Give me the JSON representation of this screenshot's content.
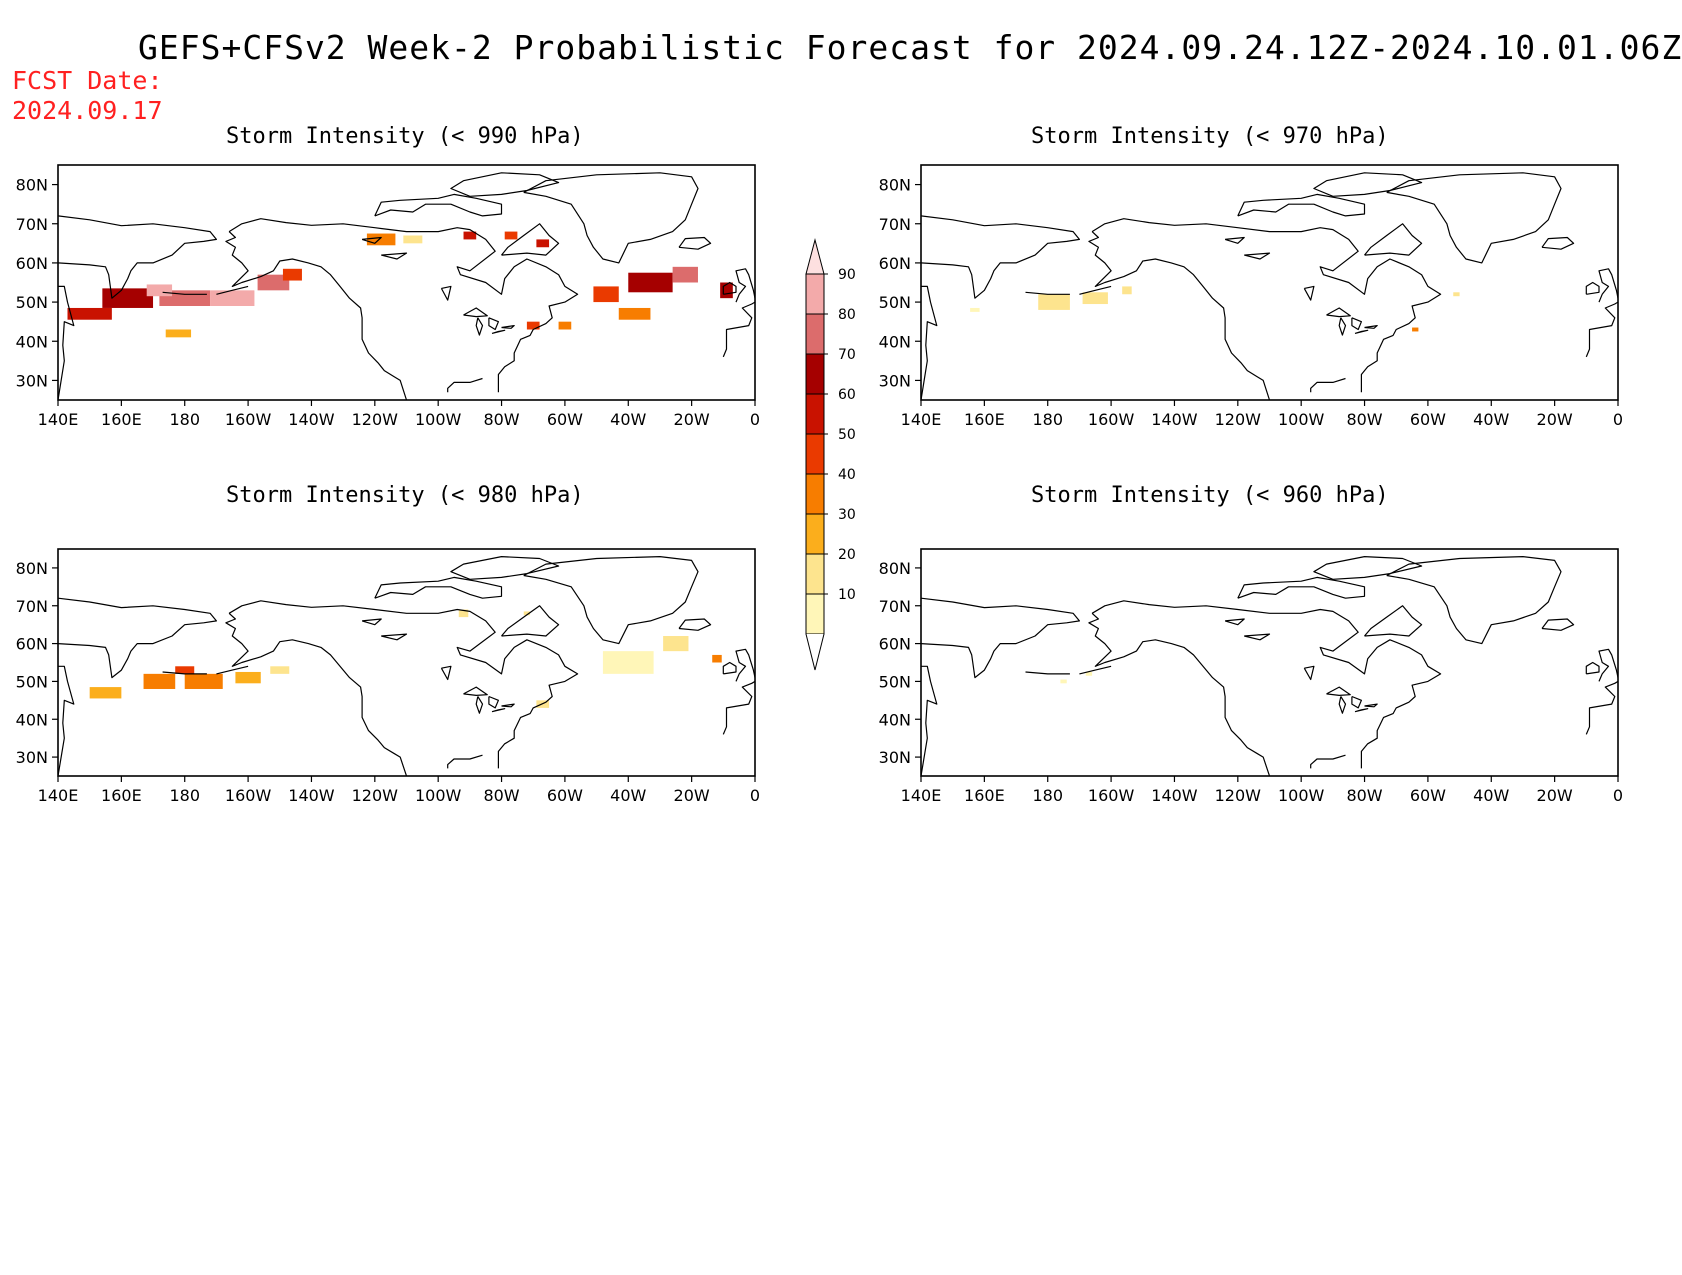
{
  "title": "GEFS+CFSv2 Week-2 Probabilistic Forecast for 2024.09.24.12Z-2024.10.01.06Z",
  "fcst_label": "FCST Date:",
  "fcst_date": "2024.09.17",
  "lon_ticks": [
    "140E",
    "160E",
    "180",
    "160W",
    "140W",
    "120W",
    "100W",
    "80W",
    "60W",
    "40W",
    "20W",
    "0"
  ],
  "lat_ticks": [
    "80N",
    "70N",
    "60N",
    "50N",
    "40N",
    "30N"
  ],
  "colorbar": {
    "levels": [
      "10",
      "20",
      "30",
      "40",
      "50",
      "60",
      "70",
      "80",
      "90"
    ],
    "colors": [
      "#fff6b8",
      "#fde48e",
      "#fbae1c",
      "#f77d00",
      "#ea3a00",
      "#c91200",
      "#a50000",
      "#dc6c6c",
      "#f3aaaa",
      "#fde0e0"
    ]
  },
  "panels": [
    {
      "id": "p990",
      "title": "Storm Intensity (< 990 hPa)",
      "blobs": [
        {
          "lon": 150,
          "lat": 47,
          "dlon": 14,
          "dlat": 3,
          "c": 5
        },
        {
          "lon": 162,
          "lat": 51,
          "dlon": 16,
          "dlat": 5,
          "c": 6
        },
        {
          "lon": 180,
          "lat": 51,
          "dlon": 16,
          "dlat": 4,
          "c": 7
        },
        {
          "lon": 172,
          "lat": 53,
          "dlon": 8,
          "dlat": 3,
          "c": 8
        },
        {
          "lon": 195,
          "lat": 51,
          "dlon": 14,
          "dlat": 4,
          "c": 8
        },
        {
          "lon": 208,
          "lat": 55,
          "dlon": 10,
          "dlat": 4,
          "c": 7
        },
        {
          "lon": 214,
          "lat": 57,
          "dlon": 6,
          "dlat": 3,
          "c": 4
        },
        {
          "lon": 178,
          "lat": 42,
          "dlon": 8,
          "dlat": 2,
          "c": 2
        },
        {
          "lon": 242,
          "lat": 66,
          "dlon": 9,
          "dlat": 3,
          "c": 3
        },
        {
          "lon": 252,
          "lat": 66,
          "dlon": 6,
          "dlat": 2,
          "c": 1
        },
        {
          "lon": 270,
          "lat": 67,
          "dlon": 4,
          "dlat": 2,
          "c": 5
        },
        {
          "lon": 283,
          "lat": 67,
          "dlon": 4,
          "dlat": 2,
          "c": 4
        },
        {
          "lon": 293,
          "lat": 65,
          "dlon": 4,
          "dlat": 2,
          "c": 5
        },
        {
          "lon": 327,
          "lat": 55,
          "dlon": 14,
          "dlat": 5,
          "c": 6
        },
        {
          "lon": 338,
          "lat": 57,
          "dlon": 8,
          "dlat": 4,
          "c": 7
        },
        {
          "lon": 313,
          "lat": 52,
          "dlon": 8,
          "dlat": 4,
          "c": 4
        },
        {
          "lon": 322,
          "lat": 47,
          "dlon": 10,
          "dlat": 3,
          "c": 3
        },
        {
          "lon": 300,
          "lat": 44,
          "dlon": 4,
          "dlat": 2,
          "c": 3
        },
        {
          "lon": 290,
          "lat": 44,
          "dlon": 4,
          "dlat": 2,
          "c": 4
        },
        {
          "lon": 351,
          "lat": 53,
          "dlon": 4,
          "dlat": 4,
          "c": 6
        }
      ]
    },
    {
      "id": "p970",
      "title": "Storm Intensity (< 970 hPa)",
      "blobs": [
        {
          "lon": 182,
          "lat": 50,
          "dlon": 10,
          "dlat": 4,
          "c": 1
        },
        {
          "lon": 195,
          "lat": 51,
          "dlon": 8,
          "dlat": 3,
          "c": 1
        },
        {
          "lon": 205,
          "lat": 53,
          "dlon": 3,
          "dlat": 2,
          "c": 1
        },
        {
          "lon": 157,
          "lat": 48,
          "dlon": 3,
          "dlat": 1,
          "c": 0
        },
        {
          "lon": 296,
          "lat": 43,
          "dlon": 2,
          "dlat": 1,
          "c": 3
        },
        {
          "lon": 309,
          "lat": 52,
          "dlon": 2,
          "dlat": 1,
          "c": 1
        }
      ]
    },
    {
      "id": "p980",
      "title": "Storm Intensity (< 980 hPa)",
      "blobs": [
        {
          "lon": 155,
          "lat": 47,
          "dlon": 10,
          "dlat": 3,
          "c": 2
        },
        {
          "lon": 172,
          "lat": 50,
          "dlon": 10,
          "dlat": 4,
          "c": 3
        },
        {
          "lon": 186,
          "lat": 50,
          "dlon": 12,
          "dlat": 4,
          "c": 3
        },
        {
          "lon": 200,
          "lat": 51,
          "dlon": 8,
          "dlat": 3,
          "c": 2
        },
        {
          "lon": 180,
          "lat": 53,
          "dlon": 6,
          "dlat": 2,
          "c": 4
        },
        {
          "lon": 210,
          "lat": 53,
          "dlon": 6,
          "dlat": 2,
          "c": 1
        },
        {
          "lon": 268,
          "lat": 68,
          "dlon": 3,
          "dlat": 2,
          "c": 1
        },
        {
          "lon": 288,
          "lat": 68,
          "dlon": 2,
          "dlat": 1,
          "c": 1
        },
        {
          "lon": 320,
          "lat": 55,
          "dlon": 16,
          "dlat": 6,
          "c": 0
        },
        {
          "lon": 335,
          "lat": 60,
          "dlon": 8,
          "dlat": 4,
          "c": 1
        },
        {
          "lon": 348,
          "lat": 56,
          "dlon": 3,
          "dlat": 2,
          "c": 3
        },
        {
          "lon": 293,
          "lat": 44,
          "dlon": 4,
          "dlat": 2,
          "c": 1
        }
      ]
    },
    {
      "id": "p960",
      "title": "Storm Intensity (< 960 hPa)",
      "blobs": [
        {
          "lon": 185,
          "lat": 50,
          "dlon": 2,
          "dlat": 1,
          "c": 0
        },
        {
          "lon": 193,
          "lat": 52,
          "dlon": 2,
          "dlat": 1,
          "c": 0
        }
      ]
    }
  ]
}
